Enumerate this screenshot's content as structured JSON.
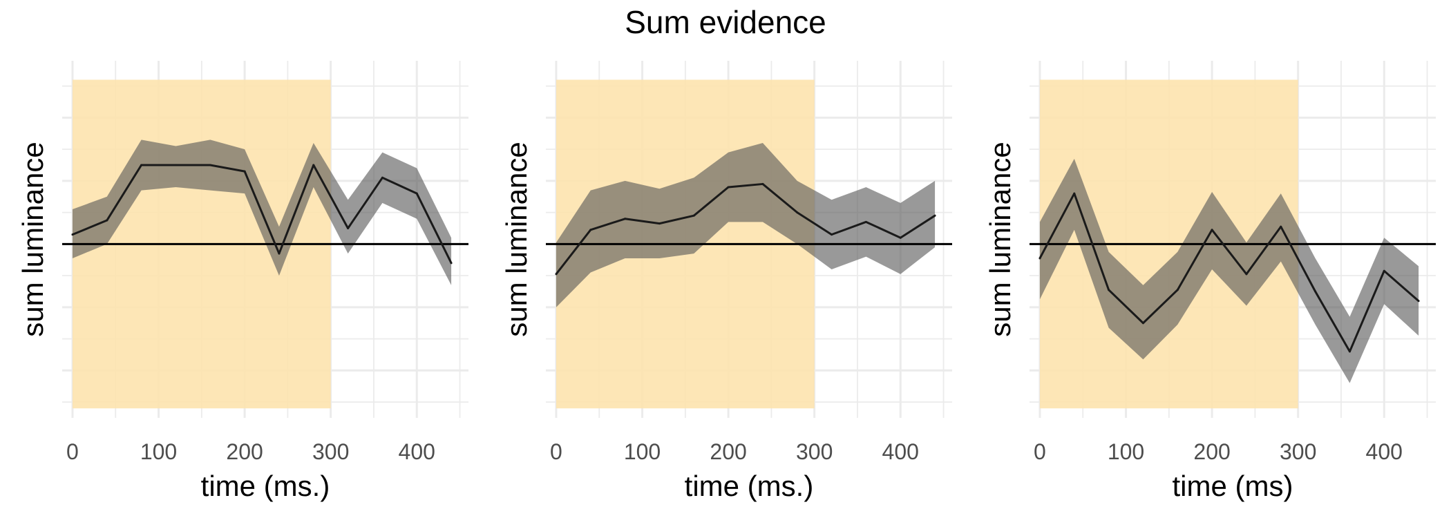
{
  "title": "Sum evidence",
  "colors": {
    "highlight": "#fde3ae",
    "ribbon": "#555555",
    "line": "#1a1a1a",
    "grid": "#ebebeb",
    "tick_text": "#4d4d4d"
  },
  "chart_data": [
    {
      "type": "line",
      "xlabel": "time (ms.)",
      "ylabel": "sum luminance",
      "xlim": [
        -12,
        460
      ],
      "ylim": [
        -5.5,
        5.8
      ],
      "x_ticks": [
        0,
        100,
        200,
        300,
        400
      ],
      "highlight_x": [
        0,
        300
      ],
      "highlight_y": [
        -5.2,
        5.2
      ],
      "reference_y": 0,
      "x": [
        0,
        40,
        80,
        120,
        160,
        200,
        240,
        280,
        320,
        360,
        400,
        440
      ],
      "y": [
        0.3,
        0.75,
        2.5,
        2.5,
        2.5,
        2.3,
        -0.3,
        2.5,
        0.5,
        2.1,
        1.6,
        -0.6
      ],
      "upper": [
        1.1,
        1.5,
        3.3,
        3.1,
        3.3,
        3.0,
        0.55,
        3.2,
        1.4,
        2.9,
        2.4,
        0.2
      ],
      "lower": [
        -0.45,
        0.0,
        1.7,
        1.8,
        1.7,
        1.6,
        -1.0,
        1.8,
        -0.3,
        1.3,
        0.8,
        -1.3
      ]
    },
    {
      "type": "line",
      "xlabel": "time (ms.)",
      "ylabel": "sum luminance",
      "xlim": [
        -12,
        460
      ],
      "ylim": [
        -5.5,
        5.8
      ],
      "x_ticks": [
        0,
        100,
        200,
        300,
        400
      ],
      "highlight_x": [
        0,
        300
      ],
      "highlight_y": [
        -5.2,
        5.2
      ],
      "reference_y": 0,
      "x": [
        0,
        40,
        80,
        120,
        160,
        200,
        240,
        280,
        320,
        360,
        400,
        440
      ],
      "y": [
        -0.95,
        0.45,
        0.8,
        0.65,
        0.9,
        1.8,
        1.9,
        1.0,
        0.3,
        0.7,
        0.2,
        0.9
      ],
      "upper": [
        0.05,
        1.7,
        2.0,
        1.75,
        2.1,
        2.9,
        3.2,
        2.0,
        1.4,
        1.8,
        1.3,
        2.0
      ],
      "lower": [
        -2.0,
        -0.9,
        -0.45,
        -0.45,
        -0.3,
        0.7,
        0.7,
        0.0,
        -0.8,
        -0.4,
        -0.95,
        -0.1
      ]
    },
    {
      "type": "line",
      "xlabel": "time (ms)",
      "ylabel": "sum luminance",
      "xlim": [
        -12,
        460
      ],
      "ylim": [
        -5.5,
        5.8
      ],
      "x_ticks": [
        0,
        100,
        200,
        300,
        400
      ],
      "highlight_x": [
        0,
        300
      ],
      "highlight_y": [
        -5.2,
        5.2
      ],
      "reference_y": 0,
      "x": [
        0,
        40,
        80,
        120,
        160,
        200,
        240,
        280,
        320,
        360,
        400,
        440
      ],
      "y": [
        -0.45,
        1.6,
        -1.45,
        -2.5,
        -1.45,
        0.45,
        -0.95,
        0.55,
        -1.5,
        -3.4,
        -0.85,
        -1.8
      ],
      "upper": [
        0.7,
        2.7,
        -0.25,
        -1.3,
        -0.25,
        1.65,
        0.05,
        1.6,
        -0.45,
        -2.3,
        0.2,
        -0.7
      ],
      "lower": [
        -1.75,
        0.45,
        -2.65,
        -3.65,
        -2.55,
        -0.8,
        -1.95,
        -0.55,
        -2.55,
        -4.4,
        -1.9,
        -2.9
      ]
    }
  ]
}
